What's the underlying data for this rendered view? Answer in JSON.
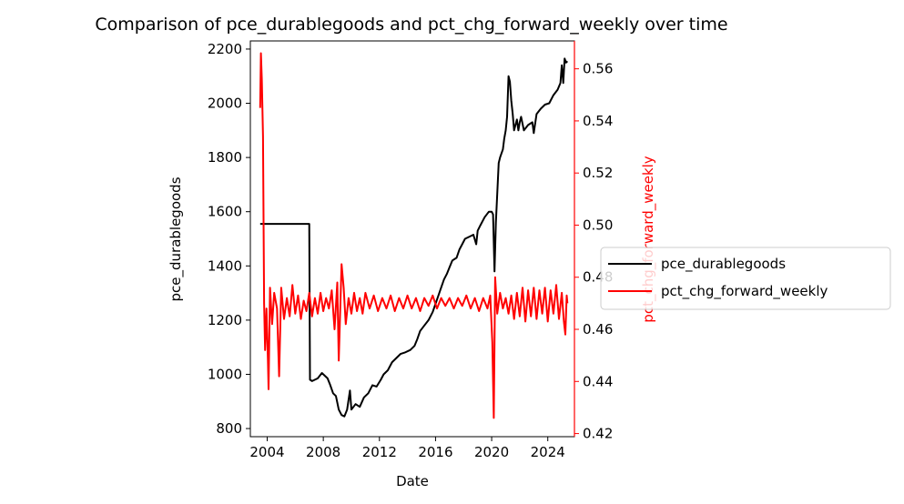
{
  "chart_data": {
    "type": "line",
    "title": "Comparison of pce_durablegoods and pct_chg_forward_weekly over time",
    "xlabel": "Date",
    "xlim": [
      2002.8,
      2025.9
    ],
    "xticks": [
      2004,
      2008,
      2012,
      2016,
      2020,
      2024
    ],
    "xtick_labels": [
      "2004",
      "2008",
      "2012",
      "2016",
      "2020",
      "2024"
    ],
    "left_axis": {
      "label": "pce_durablegoods",
      "ylim": [
        770,
        2230
      ],
      "ticks": [
        800,
        1000,
        1200,
        1400,
        1600,
        1800,
        2000,
        2200
      ],
      "tick_labels": [
        "800",
        "1000",
        "1200",
        "1400",
        "1600",
        "1800",
        "2000",
        "2200"
      ],
      "color": "#000000"
    },
    "right_axis": {
      "label": "pct_chg_forward_weekly",
      "ylim": [
        0.4188,
        0.5707
      ],
      "ticks": [
        0.42,
        0.44,
        0.46,
        0.48,
        0.5,
        0.52,
        0.54,
        0.56
      ],
      "tick_labels": [
        "0.42",
        "0.44",
        "0.46",
        "0.48",
        "0.50",
        "0.52",
        "0.54",
        "0.56"
      ],
      "color": "#ff0000"
    },
    "legend": {
      "position": "right",
      "entries": [
        "pce_durablegoods",
        "pct_chg_forward_weekly"
      ]
    },
    "grid": false,
    "series": [
      {
        "name": "pce_durablegoods",
        "axis": "left",
        "color": "#000000",
        "points": [
          [
            2003.5,
            1555
          ],
          [
            2007.0,
            1555
          ],
          [
            2007.05,
            980
          ],
          [
            2007.2,
            975
          ],
          [
            2007.6,
            985
          ],
          [
            2007.9,
            1005
          ],
          [
            2008.3,
            985
          ],
          [
            2008.5,
            960
          ],
          [
            2008.7,
            930
          ],
          [
            2008.9,
            920
          ],
          [
            2009.1,
            870
          ],
          [
            2009.3,
            850
          ],
          [
            2009.5,
            845
          ],
          [
            2009.7,
            870
          ],
          [
            2009.9,
            940
          ],
          [
            2010.0,
            870
          ],
          [
            2010.3,
            890
          ],
          [
            2010.6,
            880
          ],
          [
            2010.9,
            915
          ],
          [
            2011.2,
            930
          ],
          [
            2011.5,
            960
          ],
          [
            2011.8,
            955
          ],
          [
            2012.1,
            980
          ],
          [
            2012.3,
            1000
          ],
          [
            2012.6,
            1015
          ],
          [
            2012.9,
            1045
          ],
          [
            2013.2,
            1060
          ],
          [
            2013.5,
            1075
          ],
          [
            2013.8,
            1080
          ],
          [
            2014.2,
            1090
          ],
          [
            2014.5,
            1105
          ],
          [
            2014.7,
            1130
          ],
          [
            2014.9,
            1160
          ],
          [
            2015.2,
            1180
          ],
          [
            2015.5,
            1200
          ],
          [
            2015.8,
            1230
          ],
          [
            2016.0,
            1260
          ],
          [
            2016.2,
            1290
          ],
          [
            2016.4,
            1320
          ],
          [
            2016.6,
            1350
          ],
          [
            2016.8,
            1370
          ],
          [
            2017.0,
            1395
          ],
          [
            2017.2,
            1420
          ],
          [
            2017.5,
            1430
          ],
          [
            2017.7,
            1460
          ],
          [
            2017.9,
            1480
          ],
          [
            2018.1,
            1500
          ],
          [
            2018.3,
            1505
          ],
          [
            2018.5,
            1510
          ],
          [
            2018.7,
            1515
          ],
          [
            2018.9,
            1480
          ],
          [
            2019.0,
            1530
          ],
          [
            2019.2,
            1550
          ],
          [
            2019.5,
            1580
          ],
          [
            2019.8,
            1600
          ],
          [
            2020.0,
            1600
          ],
          [
            2020.1,
            1590
          ],
          [
            2020.2,
            1380
          ],
          [
            2020.3,
            1560
          ],
          [
            2020.5,
            1780
          ],
          [
            2020.6,
            1800
          ],
          [
            2020.8,
            1830
          ],
          [
            2020.9,
            1870
          ],
          [
            2021.0,
            1900
          ],
          [
            2021.1,
            1950
          ],
          [
            2021.2,
            2100
          ],
          [
            2021.3,
            2080
          ],
          [
            2021.4,
            2010
          ],
          [
            2021.5,
            1960
          ],
          [
            2021.6,
            1900
          ],
          [
            2021.8,
            1940
          ],
          [
            2021.9,
            1900
          ],
          [
            2022.0,
            1930
          ],
          [
            2022.1,
            1950
          ],
          [
            2022.3,
            1900
          ],
          [
            2022.6,
            1920
          ],
          [
            2022.9,
            1930
          ],
          [
            2023.0,
            1890
          ],
          [
            2023.2,
            1960
          ],
          [
            2023.5,
            1980
          ],
          [
            2023.8,
            1995
          ],
          [
            2024.1,
            2000
          ],
          [
            2024.4,
            2030
          ],
          [
            2024.7,
            2050
          ],
          [
            2024.9,
            2075
          ],
          [
            2025.0,
            2140
          ],
          [
            2025.1,
            2075
          ],
          [
            2025.2,
            2165
          ],
          [
            2025.3,
            2150
          ],
          [
            2025.4,
            2155
          ]
        ]
      },
      {
        "name": "pct_chg_forward_weekly",
        "axis": "right",
        "color": "#ff0000",
        "points": [
          [
            2003.5,
            0.545
          ],
          [
            2003.55,
            0.566
          ],
          [
            2003.62,
            0.556
          ],
          [
            2003.7,
            0.534
          ],
          [
            2003.78,
            0.47
          ],
          [
            2003.85,
            0.452
          ],
          [
            2003.95,
            0.468
          ],
          [
            2004.05,
            0.448
          ],
          [
            2004.1,
            0.437
          ],
          [
            2004.2,
            0.476
          ],
          [
            2004.35,
            0.462
          ],
          [
            2004.5,
            0.474
          ],
          [
            2004.7,
            0.468
          ],
          [
            2004.85,
            0.442
          ],
          [
            2005.0,
            0.476
          ],
          [
            2005.2,
            0.464
          ],
          [
            2005.4,
            0.472
          ],
          [
            2005.6,
            0.465
          ],
          [
            2005.8,
            0.477
          ],
          [
            2006.0,
            0.466
          ],
          [
            2006.2,
            0.473
          ],
          [
            2006.4,
            0.464
          ],
          [
            2006.6,
            0.471
          ],
          [
            2006.8,
            0.467
          ],
          [
            2007.0,
            0.474
          ],
          [
            2007.2,
            0.465
          ],
          [
            2007.4,
            0.472
          ],
          [
            2007.6,
            0.466
          ],
          [
            2007.8,
            0.474
          ],
          [
            2008.0,
            0.467
          ],
          [
            2008.2,
            0.472
          ],
          [
            2008.4,
            0.468
          ],
          [
            2008.6,
            0.475
          ],
          [
            2008.8,
            0.46
          ],
          [
            2009.0,
            0.478
          ],
          [
            2009.1,
            0.448
          ],
          [
            2009.3,
            0.485
          ],
          [
            2009.45,
            0.476
          ],
          [
            2009.6,
            0.462
          ],
          [
            2009.8,
            0.472
          ],
          [
            2010.0,
            0.466
          ],
          [
            2010.2,
            0.474
          ],
          [
            2010.4,
            0.467
          ],
          [
            2010.6,
            0.472
          ],
          [
            2010.8,
            0.466
          ],
          [
            2011.0,
            0.474
          ],
          [
            2011.3,
            0.468
          ],
          [
            2011.6,
            0.473
          ],
          [
            2011.9,
            0.467
          ],
          [
            2012.2,
            0.472
          ],
          [
            2012.5,
            0.468
          ],
          [
            2012.8,
            0.473
          ],
          [
            2013.1,
            0.467
          ],
          [
            2013.4,
            0.472
          ],
          [
            2013.7,
            0.468
          ],
          [
            2014.0,
            0.473
          ],
          [
            2014.3,
            0.468
          ],
          [
            2014.6,
            0.472
          ],
          [
            2014.9,
            0.467
          ],
          [
            2015.2,
            0.472
          ],
          [
            2015.5,
            0.469
          ],
          [
            2015.8,
            0.473
          ],
          [
            2016.1,
            0.468
          ],
          [
            2016.4,
            0.472
          ],
          [
            2016.7,
            0.469
          ],
          [
            2017.0,
            0.472
          ],
          [
            2017.3,
            0.468
          ],
          [
            2017.6,
            0.472
          ],
          [
            2017.9,
            0.469
          ],
          [
            2018.2,
            0.473
          ],
          [
            2018.5,
            0.468
          ],
          [
            2018.8,
            0.472
          ],
          [
            2019.1,
            0.467
          ],
          [
            2019.4,
            0.472
          ],
          [
            2019.7,
            0.468
          ],
          [
            2019.9,
            0.473
          ],
          [
            2020.05,
            0.455
          ],
          [
            2020.15,
            0.426
          ],
          [
            2020.25,
            0.48
          ],
          [
            2020.4,
            0.466
          ],
          [
            2020.6,
            0.474
          ],
          [
            2020.8,
            0.468
          ],
          [
            2021.0,
            0.472
          ],
          [
            2021.2,
            0.466
          ],
          [
            2021.4,
            0.473
          ],
          [
            2021.6,
            0.464
          ],
          [
            2021.8,
            0.474
          ],
          [
            2022.0,
            0.465
          ],
          [
            2022.2,
            0.476
          ],
          [
            2022.4,
            0.463
          ],
          [
            2022.6,
            0.475
          ],
          [
            2022.8,
            0.465
          ],
          [
            2023.0,
            0.476
          ],
          [
            2023.2,
            0.464
          ],
          [
            2023.4,
            0.475
          ],
          [
            2023.6,
            0.466
          ],
          [
            2023.8,
            0.476
          ],
          [
            2024.0,
            0.463
          ],
          [
            2024.2,
            0.475
          ],
          [
            2024.4,
            0.466
          ],
          [
            2024.6,
            0.477
          ],
          [
            2024.8,
            0.464
          ],
          [
            2025.0,
            0.474
          ],
          [
            2025.15,
            0.463
          ],
          [
            2025.25,
            0.458
          ],
          [
            2025.35,
            0.473
          ],
          [
            2025.4,
            0.47
          ]
        ]
      }
    ]
  }
}
